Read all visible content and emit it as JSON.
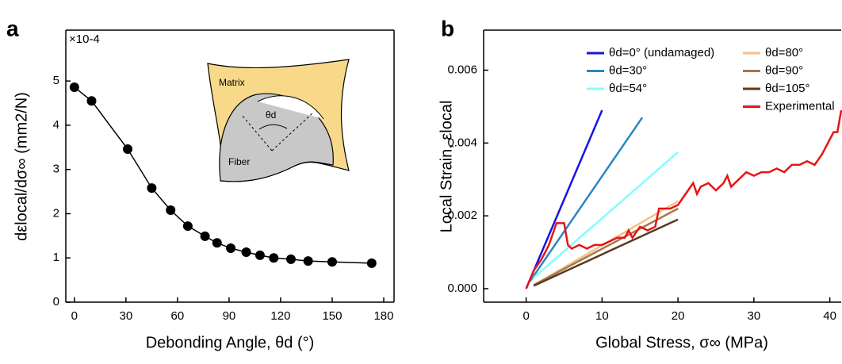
{
  "chart_data": [
    {
      "type": "line",
      "panel": "a",
      "markers": true,
      "color": "#000000",
      "x_label": "Debonding Angle, θd (°)",
      "y_label": "dεlocal/dσ∞ (mm2/N)",
      "y_multiplier": "×10-4",
      "annotations": [
        "Matrix",
        "Fiber",
        "θd"
      ],
      "x": [
        0,
        10,
        31,
        45,
        56,
        66,
        76,
        83,
        91,
        100,
        108,
        116,
        126,
        136,
        150,
        173
      ],
      "values": [
        4.86,
        4.55,
        3.46,
        2.58,
        2.08,
        1.72,
        1.49,
        1.34,
        1.22,
        1.13,
        1.06,
        1.0,
        0.97,
        0.93,
        0.91,
        0.88
      ],
      "xlim": [
        -5,
        186
      ],
      "ylim": [
        0,
        6.15
      ],
      "xticks": [
        0,
        30,
        60,
        90,
        120,
        150,
        180
      ],
      "yticks": [
        0,
        1,
        2,
        3,
        4,
        5
      ]
    },
    {
      "type": "line",
      "panel": "b",
      "markers": false,
      "x_label": "Global Stress, σ∞ (MPa)",
      "y_label": "Local Strain, εlocal",
      "xlim": [
        -5.6,
        41.5
      ],
      "ylim": [
        -0.00037,
        0.0071
      ],
      "xticks": [
        0,
        10,
        20,
        30,
        40
      ],
      "yticks": [
        {
          "value": 0,
          "label": "0.000"
        },
        0.002,
        0.004,
        0.006
      ],
      "series": [
        {
          "name": "θd=0° (undamaged)",
          "color": "#1414e6",
          "x": [
            0,
            10
          ],
          "values": [
            0,
            0.0049
          ]
        },
        {
          "name": "θd=30°",
          "color": "#2a86c4",
          "x": [
            0.5,
            15.3
          ],
          "values": [
            0.0002,
            0.0047
          ]
        },
        {
          "name": "θd=54°",
          "color": "#80ffff",
          "x": [
            1,
            20
          ],
          "values": [
            0.0003,
            0.00375
          ]
        },
        {
          "name": "θd=80°",
          "color": "#f5c08a",
          "x": [
            1,
            20
          ],
          "values": [
            0.0001,
            0.0024
          ]
        },
        {
          "name": "θd=90°",
          "color": "#a37a45",
          "x": [
            1,
            20
          ],
          "values": [
            0.0001,
            0.0022
          ]
        },
        {
          "name": "θd=105°",
          "color": "#5a3a22",
          "x": [
            1,
            20
          ],
          "values": [
            8e-05,
            0.0019
          ]
        },
        {
          "name": "Experimental",
          "color": "#e81414",
          "x": [
            0,
            1,
            2,
            3,
            4,
            5,
            5.5,
            6,
            7,
            8,
            9,
            10,
            11,
            12,
            13,
            13.5,
            14,
            15,
            16,
            17,
            17.5,
            19,
            20,
            21,
            22,
            22.5,
            23,
            24,
            25,
            26,
            26.5,
            27,
            28,
            29,
            30,
            31,
            32,
            33,
            34,
            35,
            36,
            37,
            38,
            39,
            40,
            40.5,
            41,
            41.5
          ],
          "values": [
            0,
            0.0005,
            0.0008,
            0.0012,
            0.0018,
            0.0018,
            0.0012,
            0.0011,
            0.0012,
            0.0011,
            0.0012,
            0.0012,
            0.0013,
            0.0014,
            0.0014,
            0.0016,
            0.0014,
            0.0017,
            0.0016,
            0.0017,
            0.0022,
            0.0022,
            0.0023,
            0.0026,
            0.0029,
            0.0026,
            0.0028,
            0.0029,
            0.0027,
            0.0029,
            0.0031,
            0.0028,
            0.003,
            0.0032,
            0.0031,
            0.0032,
            0.0032,
            0.0033,
            0.0032,
            0.0034,
            0.0034,
            0.0035,
            0.0034,
            0.0037,
            0.0041,
            0.0043,
            0.0043,
            0.0049
          ]
        }
      ]
    }
  ]
}
